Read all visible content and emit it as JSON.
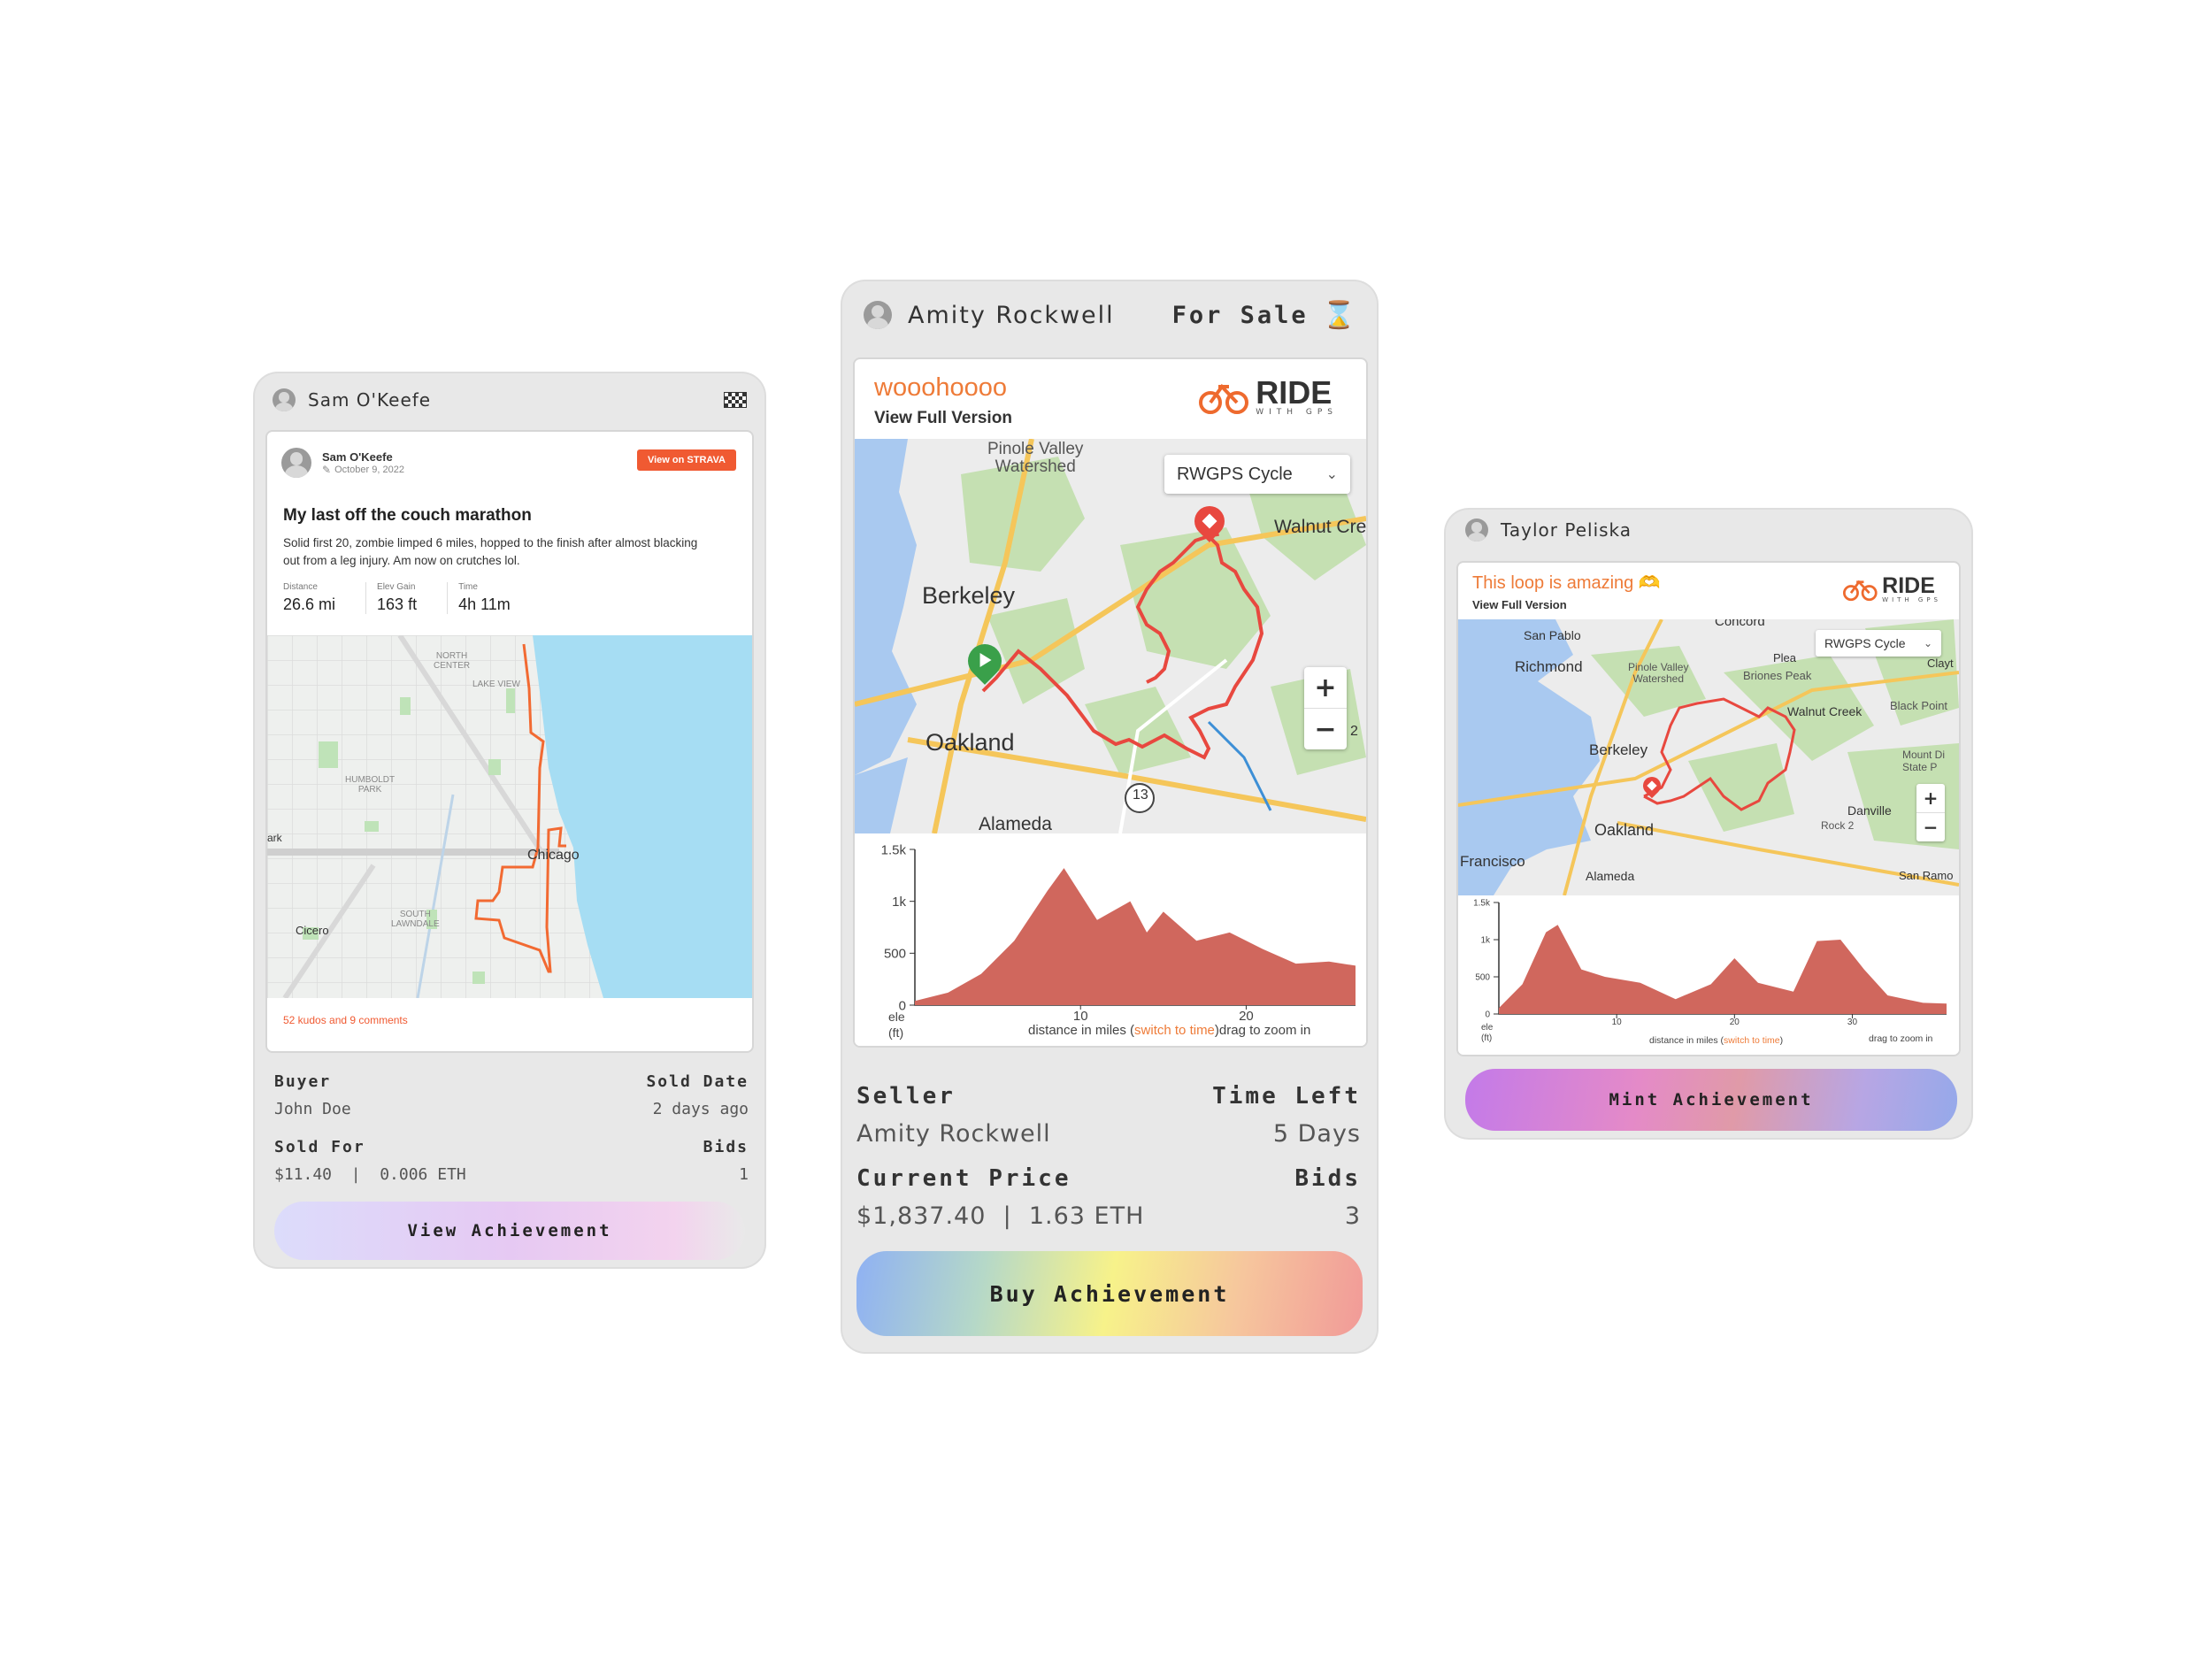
{
  "card_left": {
    "user": "Sam O'Keefe",
    "post": {
      "author": "Sam O'Keefe",
      "date": "October 9, 2022",
      "strava_button": "View on STRAVA",
      "title": "My last off the couch marathon",
      "description": "Solid first 20, zombie limped 6 miles, hopped to the finish after almost blacking out from a leg injury. Am now on crutches lol.",
      "stats": [
        {
          "label": "Distance",
          "value": "26.6 mi"
        },
        {
          "label": "Elev Gain",
          "value": "163 ft"
        },
        {
          "label": "Time",
          "value": "4h 11m"
        }
      ],
      "map_labels": {
        "north_center": "NORTH\nCENTER",
        "lake_view": "LAKE VIEW",
        "humboldt": "HUMBOLDT\nPARK",
        "chicago": "Chicago",
        "cicero": "Cicero",
        "south_lawndale": "SOUTH\nLAWNDALE",
        "ark": "ark"
      },
      "kudos": "52 kudos and 9 comments"
    },
    "info": {
      "buyer_label": "Buyer",
      "buyer": "John Doe",
      "sold_date_label": "Sold Date",
      "sold_date": "2 days ago",
      "sold_for_label": "Sold For",
      "sold_for": "$11.40  |  0.006 ETH",
      "bids_label": "Bids",
      "bids": "1"
    },
    "button": "View Achievement"
  },
  "card_center": {
    "user": "Amity Rockwell",
    "status": "For Sale",
    "title": "wooohoooo",
    "view_full": "View Full Version",
    "ride_logo": "RIDE",
    "ride_logo_sub": "WITH GPS",
    "map_select": "RWGPS Cycle",
    "map_labels": {
      "pinole": "Pinole Valley\nWatershed",
      "walnut": "Walnut Cre",
      "berkeley": "Berkeley",
      "oakland": "Oakland",
      "alameda": "Alameda",
      "route13": "13",
      "cut2": "2"
    },
    "zoom_in": "+",
    "zoom_out": "−",
    "elevation": {
      "y_ticks": [
        "1.5k",
        "1k",
        "500",
        "0"
      ],
      "x_ticks": [
        "10",
        "20"
      ],
      "y_unit": "ele\n(ft)",
      "x_caption_pre": "distance in miles (",
      "x_caption_link": "switch to time",
      "x_caption_post": ")drag to zoom in"
    },
    "info": {
      "seller_label": "Seller",
      "seller": "Amity Rockwell",
      "time_left_label": "Time Left",
      "time_left": "5 Days",
      "price_label": "Current Price",
      "price": "$1,837.40  |  1.63 ETH",
      "bids_label": "Bids",
      "bids": "3"
    },
    "button": "Buy Achievement"
  },
  "card_right": {
    "user": "Taylor Peliska",
    "title": "This loop is amazing 🫶",
    "view_full": "View Full Version",
    "ride_logo": "RIDE",
    "ride_logo_sub": "WITH GPS",
    "map_select": "RWGPS Cycle",
    "map_labels": {
      "concord": "Concord",
      "san_pablo": "San Pablo",
      "richmond": "Richmond",
      "pinole": "Pinole Valley\nWatershed",
      "briones": "Briones Peak",
      "walnut": "Walnut Creek",
      "black_point": "Black Point",
      "berkeley": "Berkeley",
      "oakland": "Oakland",
      "francisco": "Francisco",
      "alameda": "Alameda",
      "danville": "Danville",
      "rock": "Rock 2",
      "mount": "Mount Di\nState P",
      "san_ramon": "San Ramo",
      "clayt": "Clayt",
      "plea": "Plea"
    },
    "zoom_in": "+",
    "zoom_out": "−",
    "elevation": {
      "y_ticks": [
        "1.5k",
        "1k",
        "500",
        "0"
      ],
      "x_ticks": [
        "10",
        "20",
        "30"
      ],
      "y_unit": "ele\n(ft)",
      "x_caption_pre": "distance in miles (",
      "x_caption_link": "switch to time",
      "x_caption_post": ")",
      "drag": "drag to zoom in"
    },
    "button": "Mint Achievement"
  },
  "colors": {
    "strava_orange": "#fc5200",
    "route_red": "#e8483f",
    "elevation_fill": "#d0675d",
    "card_bg": "#e8e8e8"
  },
  "chart_data": [
    {
      "type": "area",
      "title": "",
      "xlabel": "distance in miles",
      "ylabel": "ele (ft)",
      "ylim": [
        0,
        1500
      ],
      "x": [
        0,
        2,
        4,
        6,
        8,
        9,
        11,
        13,
        14,
        15,
        17,
        19,
        21,
        23,
        25,
        26.6
      ],
      "values": [
        40,
        120,
        300,
        620,
        1100,
        1320,
        820,
        1000,
        700,
        900,
        620,
        700,
        540,
        400,
        420,
        380
      ]
    },
    {
      "type": "area",
      "title": "",
      "xlabel": "distance in miles",
      "ylabel": "ele (ft)",
      "ylim": [
        0,
        1500
      ],
      "x": [
        0,
        2,
        4,
        5,
        7,
        9,
        12,
        15,
        18,
        20,
        22,
        25,
        27,
        29,
        31,
        33,
        36,
        38
      ],
      "values": [
        80,
        400,
        1100,
        1200,
        600,
        500,
        420,
        200,
        400,
        750,
        420,
        300,
        980,
        1000,
        600,
        250,
        150,
        140
      ]
    }
  ]
}
